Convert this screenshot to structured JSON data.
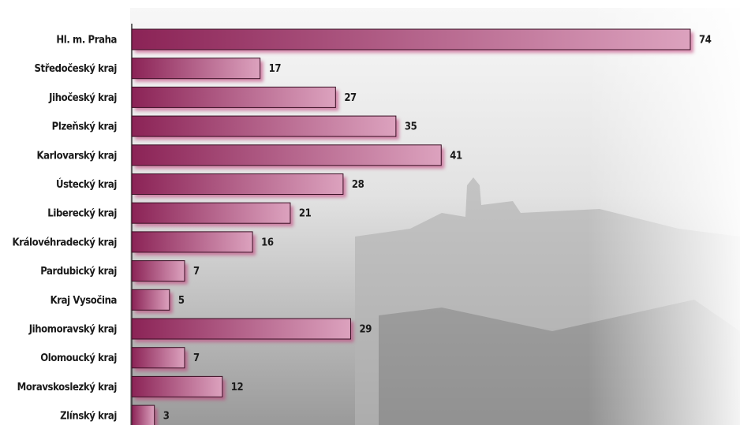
{
  "chart_data": {
    "type": "hbar",
    "categories": [
      "Hl. m. Praha",
      "Středočeský kraj",
      "Jihočeský kraj",
      "Plzeňský kraj",
      "Karlovarský kraj",
      "Ústecký kraj",
      "Liberecký kraj",
      "Královéhradecký kraj",
      "Pardubický kraj",
      "Kraj Vysočina",
      "Jihomoravský kraj",
      "Olomoucký kraj",
      "Moravskoslezký kraj",
      "Zlínský kraj"
    ],
    "values": [
      74,
      17,
      27,
      35,
      41,
      28,
      21,
      16,
      7,
      5,
      29,
      7,
      12,
      3
    ],
    "color": "#8b2356",
    "xlim": [
      0,
      74
    ]
  }
}
